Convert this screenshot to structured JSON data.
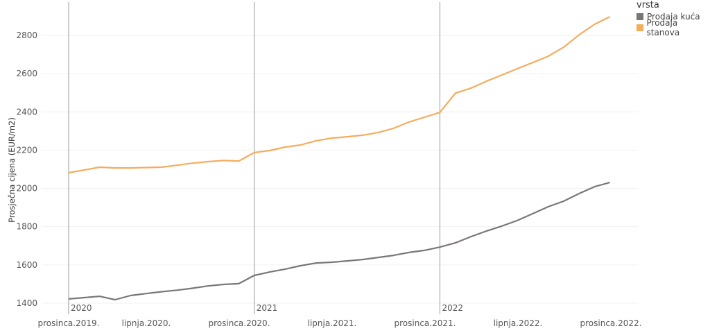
{
  "legend": {
    "title": "vrsta",
    "items": [
      {
        "label": "Prodaja kuća",
        "color": "#7a7676"
      },
      {
        "label": "Prodaja stanova",
        "color": "#f5ac5c"
      }
    ]
  },
  "chart_data": {
    "type": "line",
    "title": "",
    "xlabel": "",
    "ylabel": "Prosječna cijena (EUR/m2)",
    "ylim": [
      1380,
      2920
    ],
    "yticks": [
      1400,
      1600,
      1800,
      2000,
      2200,
      2400,
      2600,
      2800
    ],
    "xtick_labels": [
      "prosinca.2019.",
      "lipnja.2020.",
      "prosinca.2020.",
      "lipnja.2021.",
      "prosinca.2021.",
      "lipnja.2022.",
      "prosinca.2022."
    ],
    "year_markers": [
      "2020",
      "2021",
      "2022"
    ],
    "grid": true,
    "legend_position": "top-right",
    "x": [
      "2020-01",
      "2020-02",
      "2020-03",
      "2020-04",
      "2020-05",
      "2020-06",
      "2020-07",
      "2020-08",
      "2020-09",
      "2020-10",
      "2020-11",
      "2020-12",
      "2021-01",
      "2021-02",
      "2021-03",
      "2021-04",
      "2021-05",
      "2021-06",
      "2021-07",
      "2021-08",
      "2021-09",
      "2021-10",
      "2021-11",
      "2021-12",
      "2022-01",
      "2022-02",
      "2022-03",
      "2022-04",
      "2022-05",
      "2022-06",
      "2022-07",
      "2022-08",
      "2022-09",
      "2022-10",
      "2022-11",
      "2022-12"
    ],
    "series": [
      {
        "name": "Prodaja kuća",
        "color": "#7a7676",
        "values": [
          1422,
          1429,
          1436,
          1418,
          1440,
          1450,
          1460,
          1468,
          1478,
          1490,
          1498,
          1502,
          1545,
          1563,
          1578,
          1596,
          1610,
          1614,
          1621,
          1628,
          1639,
          1650,
          1665,
          1676,
          1693,
          1715,
          1748,
          1777,
          1803,
          1832,
          1868,
          1904,
          1933,
          1973,
          2009,
          2031
        ]
      },
      {
        "name": "Prodaja stanova",
        "color": "#f5ac5c",
        "values": [
          2082,
          2096,
          2111,
          2107,
          2107,
          2109,
          2111,
          2121,
          2132,
          2140,
          2146,
          2143,
          2187,
          2198,
          2216,
          2227,
          2249,
          2263,
          2270,
          2278,
          2292,
          2314,
          2347,
          2372,
          2397,
          2498,
          2524,
          2560,
          2593,
          2626,
          2658,
          2691,
          2738,
          2803,
          2858,
          2898
        ]
      }
    ]
  }
}
